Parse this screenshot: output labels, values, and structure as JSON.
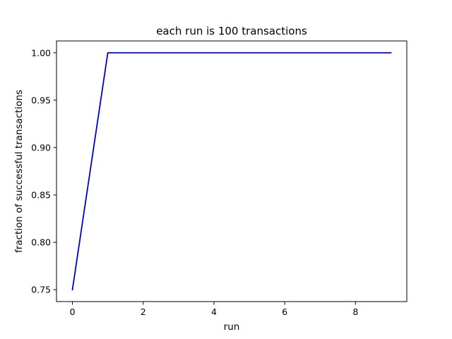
{
  "chart_data": {
    "type": "line",
    "title": "each run is 100 transactions",
    "xlabel": "run",
    "ylabel": "fraction of successful transactions",
    "x": [
      0,
      1,
      2,
      3,
      4,
      5,
      6,
      7,
      8,
      9
    ],
    "series": [
      {
        "values": [
          0.75,
          1.0,
          1.0,
          1.0,
          1.0,
          1.0,
          1.0,
          1.0,
          1.0,
          1.0
        ],
        "color": "#0000cc"
      }
    ],
    "xticks": [
      0,
      2,
      4,
      6,
      8
    ],
    "yticks": [
      0.75,
      0.8,
      0.85,
      0.9,
      0.95,
      1.0
    ],
    "xtick_labels": [
      "0",
      "2",
      "4",
      "6",
      "8"
    ],
    "ytick_labels": [
      "0.75",
      "0.80",
      "0.85",
      "0.90",
      "0.95",
      "1.00"
    ],
    "xlim": [
      -0.45,
      9.45
    ],
    "ylim": [
      0.7375,
      1.0125
    ],
    "grid": false,
    "legend": false
  }
}
